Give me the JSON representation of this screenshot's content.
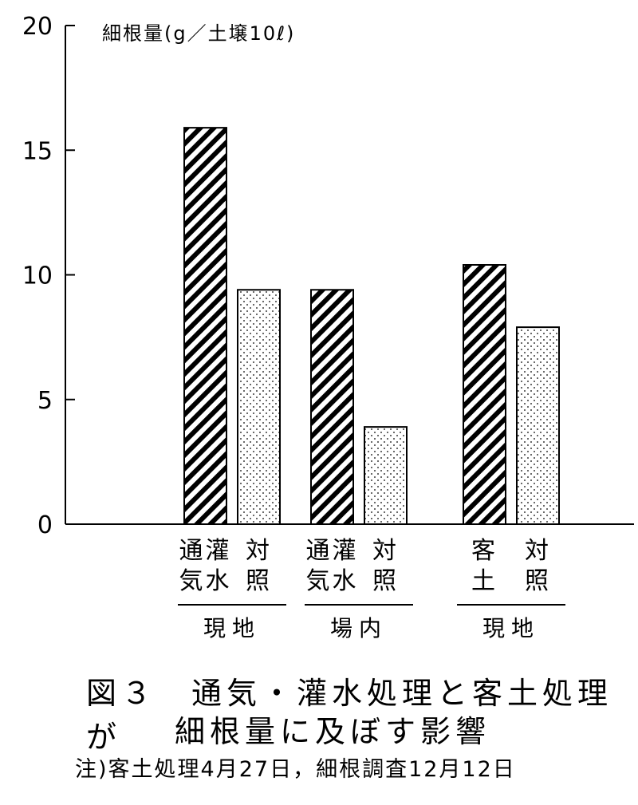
{
  "chart_data": {
    "type": "bar",
    "ylabel": "細根量(g／土壌10ℓ)",
    "ylim": [
      0,
      20
    ],
    "yticks": [
      "0",
      "5",
      "10",
      "15",
      "20"
    ],
    "categories": [
      "通灌\n気水",
      "対\n照",
      "通灌\n気水",
      "対\n照",
      "客\n土",
      "対\n照"
    ],
    "values": [
      15.9,
      9.4,
      9.4,
      3.9,
      10.4,
      7.9
    ],
    "patterns": [
      "hatch",
      "dots",
      "hatch",
      "dots",
      "hatch",
      "dots"
    ],
    "groups": [
      {
        "label": "現地",
        "members": [
          0,
          1
        ]
      },
      {
        "label": "場内",
        "members": [
          2,
          3
        ]
      },
      {
        "label": "現地",
        "members": [
          4,
          5
        ]
      }
    ],
    "grid": false
  },
  "caption": {
    "line1": "図３　通気・灌水処理と客土処理が",
    "line2": "細根量に及ぼす影響",
    "note": "注)客土処理4月27日，細根調査12月12日"
  }
}
